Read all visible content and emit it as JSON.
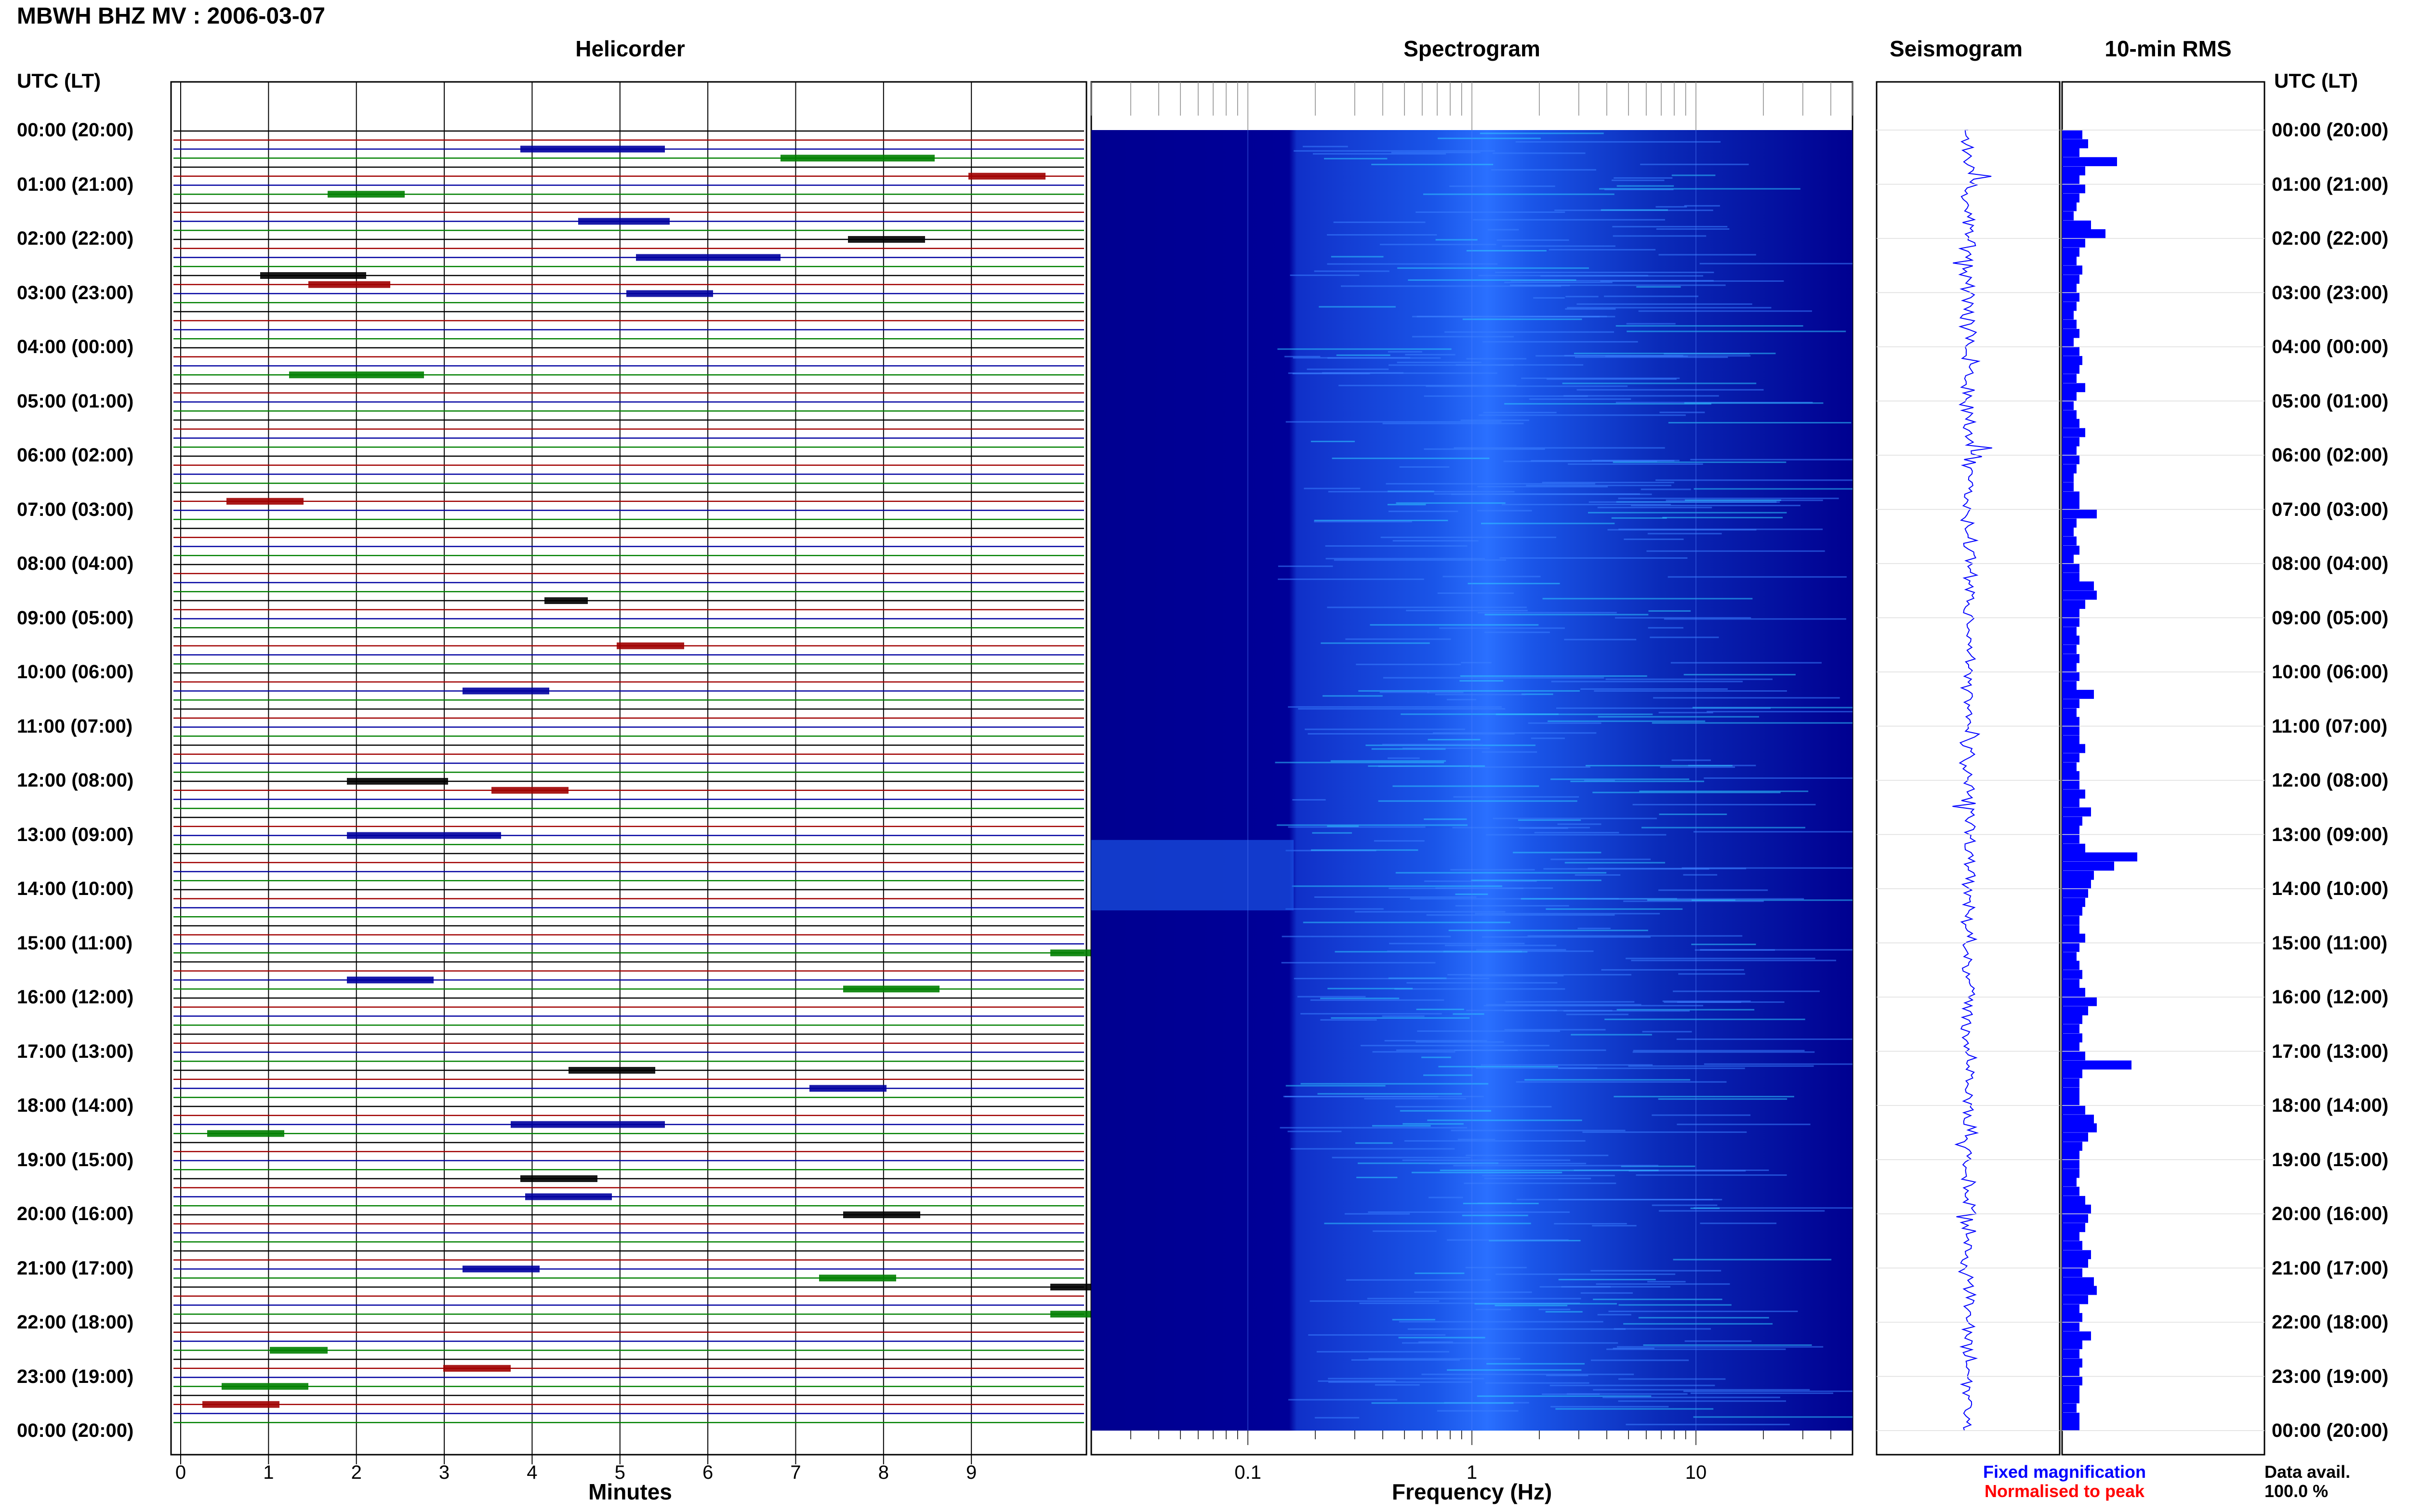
{
  "title": "MBWH BHZ MV : 2006-03-07",
  "panels": {
    "helicorder": "Helicorder",
    "spectrogram": "Spectrogram",
    "seismogram": "Seismogram",
    "rms": "10-min RMS"
  },
  "left_header": "UTC (LT)",
  "right_header": "UTC (LT)",
  "time_labels": [
    "00:00 (20:00)",
    "01:00 (21:00)",
    "02:00 (22:00)",
    "03:00 (23:00)",
    "04:00 (00:00)",
    "05:00 (01:00)",
    "06:00 (02:00)",
    "07:00 (03:00)",
    "08:00 (04:00)",
    "09:00 (05:00)",
    "10:00 (06:00)",
    "11:00 (07:00)",
    "12:00 (08:00)",
    "13:00 (09:00)",
    "14:00 (10:00)",
    "15:00 (11:00)",
    "16:00 (12:00)",
    "17:00 (13:00)",
    "18:00 (14:00)",
    "19:00 (15:00)",
    "20:00 (16:00)",
    "21:00 (17:00)",
    "22:00 (18:00)",
    "23:00 (19:00)",
    "00:00 (20:00)"
  ],
  "helicorder_xlabel": "Minutes",
  "helicorder_ticks": [
    "0",
    "1",
    "2",
    "3",
    "4",
    "5",
    "6",
    "7",
    "8",
    "9"
  ],
  "spectrogram_xlabel": "Frequency (Hz)",
  "spectrogram_ticks": [
    "0.1",
    "1",
    "10"
  ],
  "legend": {
    "fixed": "Fixed magnification",
    "normalised": "Normalised to peak",
    "fixed_color": "#0000ff",
    "normalised_color": "#ff0000"
  },
  "data_avail_label": "Data avail.",
  "data_avail_value": "100.0 %",
  "colors": {
    "trace_cycle": [
      "#000000",
      "#a00000",
      "#0000a0",
      "#008000"
    ],
    "spectrogram_bg": "#00008b",
    "rms_bar": "#0000ff"
  },
  "chart_data": {
    "type": "heatmap",
    "description_panels": [
      "helicorder",
      "spectrogram",
      "seismogram",
      "rms"
    ],
    "rms_x_hours": [
      0,
      0.17,
      0.33,
      0.5,
      0.67,
      0.83,
      1,
      1.17,
      1.33,
      1.5,
      1.67,
      1.83,
      2,
      2.17,
      2.33,
      2.5,
      2.67,
      2.83,
      3,
      3.17,
      3.33,
      3.5,
      3.67,
      3.83,
      4,
      4.17,
      4.33,
      4.5,
      4.67,
      4.83,
      5,
      5.17,
      5.33,
      5.5,
      5.67,
      5.83,
      6,
      6.17,
      6.33,
      6.5,
      6.67,
      6.83,
      7,
      7.17,
      7.33,
      7.5,
      7.67,
      7.83,
      8,
      8.17,
      8.33,
      8.5,
      8.67,
      8.83,
      9,
      9.17,
      9.33,
      9.5,
      9.67,
      9.83,
      10,
      10.17,
      10.33,
      10.5,
      10.67,
      10.83,
      11,
      11.17,
      11.33,
      11.5,
      11.67,
      11.83,
      12,
      12.17,
      12.33,
      12.5,
      12.67,
      12.83,
      13,
      13.17,
      13.33,
      13.5,
      13.67,
      13.83,
      14,
      14.17,
      14.33,
      14.5,
      14.67,
      14.83,
      15,
      15.17,
      15.33,
      15.5,
      15.67,
      15.83,
      16,
      16.17,
      16.33,
      16.5,
      16.67,
      16.83,
      17,
      17.17,
      17.33,
      17.5,
      17.67,
      17.83,
      18,
      18.17,
      18.33,
      18.5,
      18.67,
      18.83,
      19,
      19.17,
      19.33,
      19.5,
      19.67,
      19.83,
      20,
      20.17,
      20.33,
      20.5,
      20.67,
      20.83,
      21,
      21.17,
      21.33,
      21.5,
      21.67,
      21.83,
      22,
      22.17,
      22.33,
      22.5,
      22.67,
      22.83,
      23,
      23.17,
      23.33,
      23.5,
      23.67,
      23.83
    ],
    "rms_values": [
      0.35,
      0.45,
      0.3,
      0.95,
      0.4,
      0.3,
      0.4,
      0.3,
      0.25,
      0.2,
      0.5,
      0.75,
      0.4,
      0.3,
      0.25,
      0.35,
      0.3,
      0.25,
      0.3,
      0.25,
      0.2,
      0.25,
      0.3,
      0.2,
      0.3,
      0.35,
      0.3,
      0.25,
      0.4,
      0.25,
      0.2,
      0.25,
      0.3,
      0.4,
      0.3,
      0.25,
      0.3,
      0.25,
      0.2,
      0.2,
      0.3,
      0.3,
      0.6,
      0.25,
      0.2,
      0.25,
      0.3,
      0.2,
      0.3,
      0.3,
      0.55,
      0.6,
      0.4,
      0.3,
      0.3,
      0.25,
      0.3,
      0.25,
      0.3,
      0.25,
      0.3,
      0.25,
      0.55,
      0.3,
      0.25,
      0.3,
      0.3,
      0.3,
      0.4,
      0.3,
      0.25,
      0.3,
      0.3,
      0.4,
      0.3,
      0.5,
      0.35,
      0.3,
      0.3,
      0.4,
      1.3,
      0.9,
      0.55,
      0.5,
      0.45,
      0.4,
      0.35,
      0.3,
      0.3,
      0.4,
      0.3,
      0.25,
      0.3,
      0.35,
      0.3,
      0.4,
      0.6,
      0.45,
      0.35,
      0.3,
      0.35,
      0.3,
      0.4,
      1.2,
      0.35,
      0.3,
      0.3,
      0.3,
      0.4,
      0.55,
      0.6,
      0.45,
      0.35,
      0.3,
      0.3,
      0.3,
      0.25,
      0.3,
      0.4,
      0.5,
      0.45,
      0.4,
      0.3,
      0.35,
      0.5,
      0.45,
      0.35,
      0.55,
      0.6,
      0.45,
      0.3,
      0.35,
      0.3,
      0.5,
      0.35,
      0.3,
      0.35,
      0.3,
      0.35,
      0.3,
      0.3,
      0.25,
      0.3,
      0.3
    ],
    "helicorder_xrange": [
      0,
      10
    ],
    "spectrogram_xrange_hz": [
      0.02,
      50
    ],
    "x_scale_spectrogram": "log",
    "grid": true
  }
}
